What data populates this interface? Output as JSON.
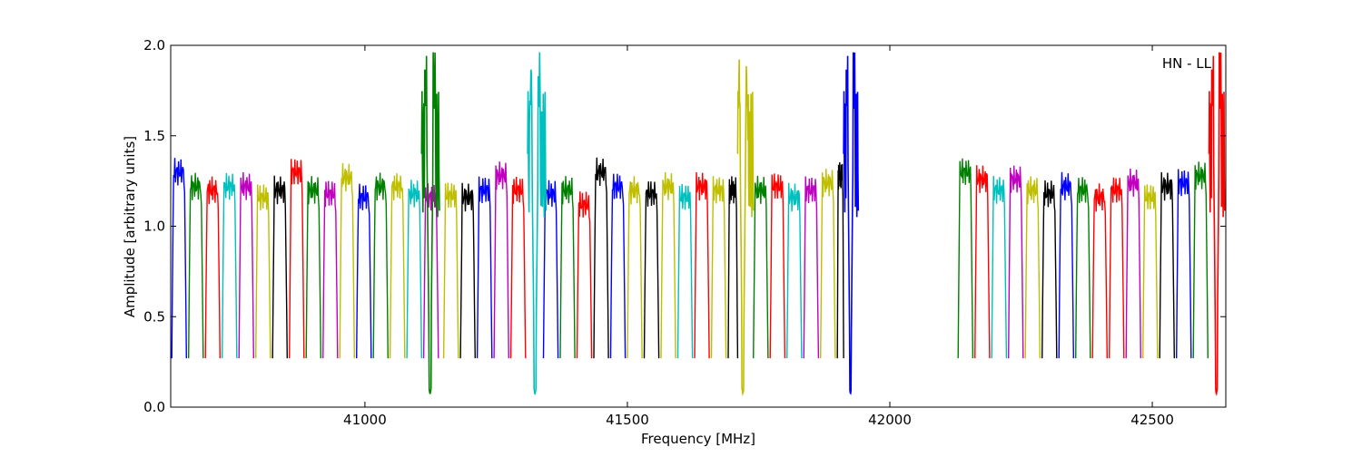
{
  "chart_data": {
    "type": "line",
    "title": "",
    "xlabel": "Frequency [MHz]",
    "ylabel": "Amplitude [arbitrary units]",
    "xlim": [
      40630,
      42640
    ],
    "ylim": [
      0.0,
      2.0
    ],
    "x_ticks": [
      41000,
      41500,
      42000,
      42500
    ],
    "x_tick_labels": [
      "41000",
      "41500",
      "42000",
      "42500"
    ],
    "y_ticks": [
      0.0,
      0.5,
      1.0,
      1.5,
      2.0
    ],
    "y_tick_labels": [
      "0.0",
      "0.5",
      "1.0",
      "1.5",
      "2.0"
    ],
    "grid": false,
    "annotation": "HN - LL",
    "annotation_position": "top-right",
    "palette": [
      "#0000ff",
      "#008000",
      "#ff0000",
      "#00bfbf",
      "#bf00bf",
      "#bfbf00",
      "#000000"
    ],
    "channel_bands": [
      {
        "start": 40632,
        "end": 40660,
        "level": 1.3,
        "color": "#0000ff"
      },
      {
        "start": 40664,
        "end": 40692,
        "level": 1.22,
        "color": "#008000"
      },
      {
        "start": 40696,
        "end": 40724,
        "level": 1.2,
        "color": "#ff0000"
      },
      {
        "start": 40728,
        "end": 40756,
        "level": 1.22,
        "color": "#00bfbf"
      },
      {
        "start": 40760,
        "end": 40788,
        "level": 1.22,
        "color": "#bf00bf"
      },
      {
        "start": 40792,
        "end": 40820,
        "level": 1.16,
        "color": "#bfbf00"
      },
      {
        "start": 40824,
        "end": 40852,
        "level": 1.2,
        "color": "#000000"
      },
      {
        "start": 40856,
        "end": 40884,
        "level": 1.3,
        "color": "#ff0000"
      },
      {
        "start": 40888,
        "end": 40916,
        "level": 1.2,
        "color": "#008000"
      },
      {
        "start": 40920,
        "end": 40948,
        "level": 1.18,
        "color": "#bf00bf"
      },
      {
        "start": 40952,
        "end": 40980,
        "level": 1.27,
        "color": "#bfbf00"
      },
      {
        "start": 40984,
        "end": 41012,
        "level": 1.16,
        "color": "#0000ff"
      },
      {
        "start": 41016,
        "end": 41044,
        "level": 1.22,
        "color": "#008000"
      },
      {
        "start": 41048,
        "end": 41076,
        "level": 1.22,
        "color": "#bfbf00"
      },
      {
        "start": 41080,
        "end": 41108,
        "level": 1.18,
        "color": "#00bfbf"
      },
      {
        "start": 41112,
        "end": 41140,
        "level": 1.16,
        "color": "#bf00bf"
      },
      {
        "start": 41150,
        "end": 41178,
        "level": 1.17,
        "color": "#bfbf00"
      },
      {
        "start": 41182,
        "end": 41210,
        "level": 1.16,
        "color": "#000000"
      },
      {
        "start": 41214,
        "end": 41242,
        "level": 1.2,
        "color": "#0000ff"
      },
      {
        "start": 41246,
        "end": 41274,
        "level": 1.28,
        "color": "#bf00bf"
      },
      {
        "start": 41278,
        "end": 41306,
        "level": 1.2,
        "color": "#ff0000"
      },
      {
        "start": 41340,
        "end": 41368,
        "level": 1.18,
        "color": "#0000ff"
      },
      {
        "start": 41372,
        "end": 41400,
        "level": 1.2,
        "color": "#008000"
      },
      {
        "start": 41404,
        "end": 41432,
        "level": 1.12,
        "color": "#ff0000"
      },
      {
        "start": 41436,
        "end": 41464,
        "level": 1.3,
        "color": "#000000"
      },
      {
        "start": 41468,
        "end": 41496,
        "level": 1.22,
        "color": "#0000ff"
      },
      {
        "start": 41500,
        "end": 41528,
        "level": 1.2,
        "color": "#bfbf00"
      },
      {
        "start": 41532,
        "end": 41560,
        "level": 1.18,
        "color": "#000000"
      },
      {
        "start": 41564,
        "end": 41592,
        "level": 1.22,
        "color": "#bfbf00"
      },
      {
        "start": 41596,
        "end": 41624,
        "level": 1.16,
        "color": "#00bfbf"
      },
      {
        "start": 41628,
        "end": 41656,
        "level": 1.22,
        "color": "#ff0000"
      },
      {
        "start": 41660,
        "end": 41688,
        "level": 1.2,
        "color": "#bfbf00"
      },
      {
        "start": 41692,
        "end": 41710,
        "level": 1.2,
        "color": "#000000"
      },
      {
        "start": 41740,
        "end": 41768,
        "level": 1.2,
        "color": "#008000"
      },
      {
        "start": 41772,
        "end": 41800,
        "level": 1.22,
        "color": "#ff0000"
      },
      {
        "start": 41804,
        "end": 41832,
        "level": 1.16,
        "color": "#00bfbf"
      },
      {
        "start": 41836,
        "end": 41864,
        "level": 1.2,
        "color": "#bf00bf"
      },
      {
        "start": 41868,
        "end": 41896,
        "level": 1.24,
        "color": "#bfbf00"
      },
      {
        "start": 41900,
        "end": 41912,
        "level": 1.28,
        "color": "#000000"
      },
      {
        "start": 42130,
        "end": 42158,
        "level": 1.3,
        "color": "#008000"
      },
      {
        "start": 42162,
        "end": 42190,
        "level": 1.26,
        "color": "#ff0000"
      },
      {
        "start": 42194,
        "end": 42222,
        "level": 1.2,
        "color": "#00bfbf"
      },
      {
        "start": 42226,
        "end": 42254,
        "level": 1.26,
        "color": "#bf00bf"
      },
      {
        "start": 42258,
        "end": 42286,
        "level": 1.2,
        "color": "#bfbf00"
      },
      {
        "start": 42290,
        "end": 42318,
        "level": 1.18,
        "color": "#000000"
      },
      {
        "start": 42322,
        "end": 42350,
        "level": 1.22,
        "color": "#0000ff"
      },
      {
        "start": 42354,
        "end": 42382,
        "level": 1.2,
        "color": "#008000"
      },
      {
        "start": 42386,
        "end": 42414,
        "level": 1.16,
        "color": "#ff0000"
      },
      {
        "start": 42418,
        "end": 42446,
        "level": 1.2,
        "color": "#ff0000"
      },
      {
        "start": 42450,
        "end": 42478,
        "level": 1.24,
        "color": "#bf00bf"
      },
      {
        "start": 42482,
        "end": 42510,
        "level": 1.16,
        "color": "#bfbf00"
      },
      {
        "start": 42514,
        "end": 42542,
        "level": 1.22,
        "color": "#000000"
      },
      {
        "start": 42546,
        "end": 42574,
        "level": 1.24,
        "color": "#0000ff"
      },
      {
        "start": 42578,
        "end": 42606,
        "level": 1.28,
        "color": "#008000"
      }
    ],
    "channel_edge_minimum": 0.27,
    "rfi_spikes": [
      {
        "start": 41108,
        "end": 41142,
        "min_x": 41124,
        "min_y": 0.07,
        "peak": 2.0,
        "color": "#008000"
      },
      {
        "start": 41310,
        "end": 41345,
        "min_x": 41324,
        "min_y": 0.07,
        "peak": 2.0,
        "color": "#00bfbf"
      },
      {
        "start": 41710,
        "end": 41740,
        "min_x": 41720,
        "min_y": 0.07,
        "peak": 2.0,
        "color": "#bfbf00"
      },
      {
        "start": 41912,
        "end": 41940,
        "min_x": 41925,
        "min_y": 0.07,
        "peak": 2.0,
        "color": "#0000ff"
      },
      {
        "start": 42608,
        "end": 42638,
        "min_x": 42622,
        "min_y": 0.07,
        "peak": 2.0,
        "color": "#ff0000"
      }
    ]
  }
}
